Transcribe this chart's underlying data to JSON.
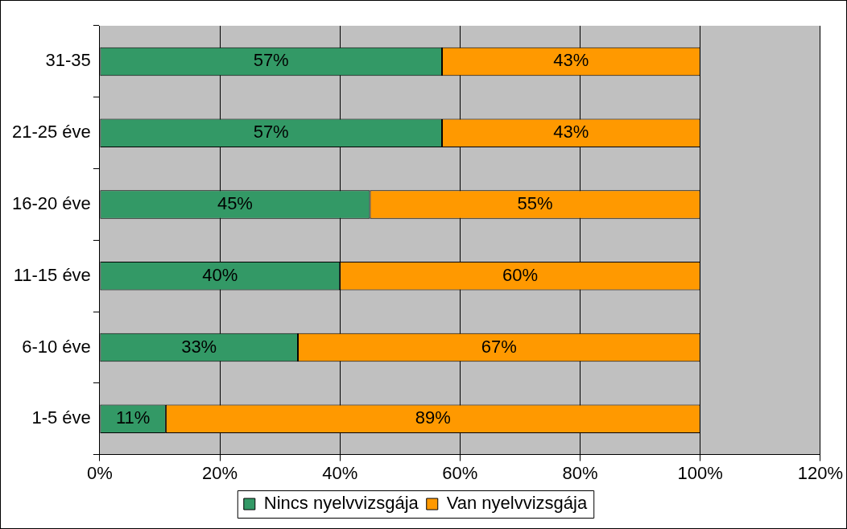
{
  "chart_data": {
    "type": "bar",
    "orientation": "horizontal",
    "stacked": true,
    "categories": [
      "31-35",
      "21-25 éve",
      "16-20 éve",
      "11-15 éve",
      "6-10 éve",
      "1-5 éve"
    ],
    "series": [
      {
        "name": "Nincs nyelvvizsgája",
        "color": "#339966",
        "values": [
          57,
          57,
          45,
          40,
          33,
          11
        ],
        "value_labels": [
          "57%",
          "57%",
          "45%",
          "40%",
          "33%",
          "11%"
        ]
      },
      {
        "name": "Van nyelvvizsgája",
        "color": "#ff9900",
        "values": [
          43,
          43,
          55,
          60,
          67,
          89
        ],
        "value_labels": [
          "43%",
          "43%",
          "55%",
          "60%",
          "67%",
          "89%"
        ]
      }
    ],
    "xlim": [
      0,
      120
    ],
    "xticks": [
      {
        "value": 0,
        "label": "0%"
      },
      {
        "value": 20,
        "label": "20%"
      },
      {
        "value": 40,
        "label": "40%"
      },
      {
        "value": 60,
        "label": "60%"
      },
      {
        "value": 80,
        "label": "80%"
      },
      {
        "value": 100,
        "label": "100%"
      },
      {
        "value": 120,
        "label": "120%"
      }
    ],
    "grid": "x",
    "legend": "bottom"
  }
}
